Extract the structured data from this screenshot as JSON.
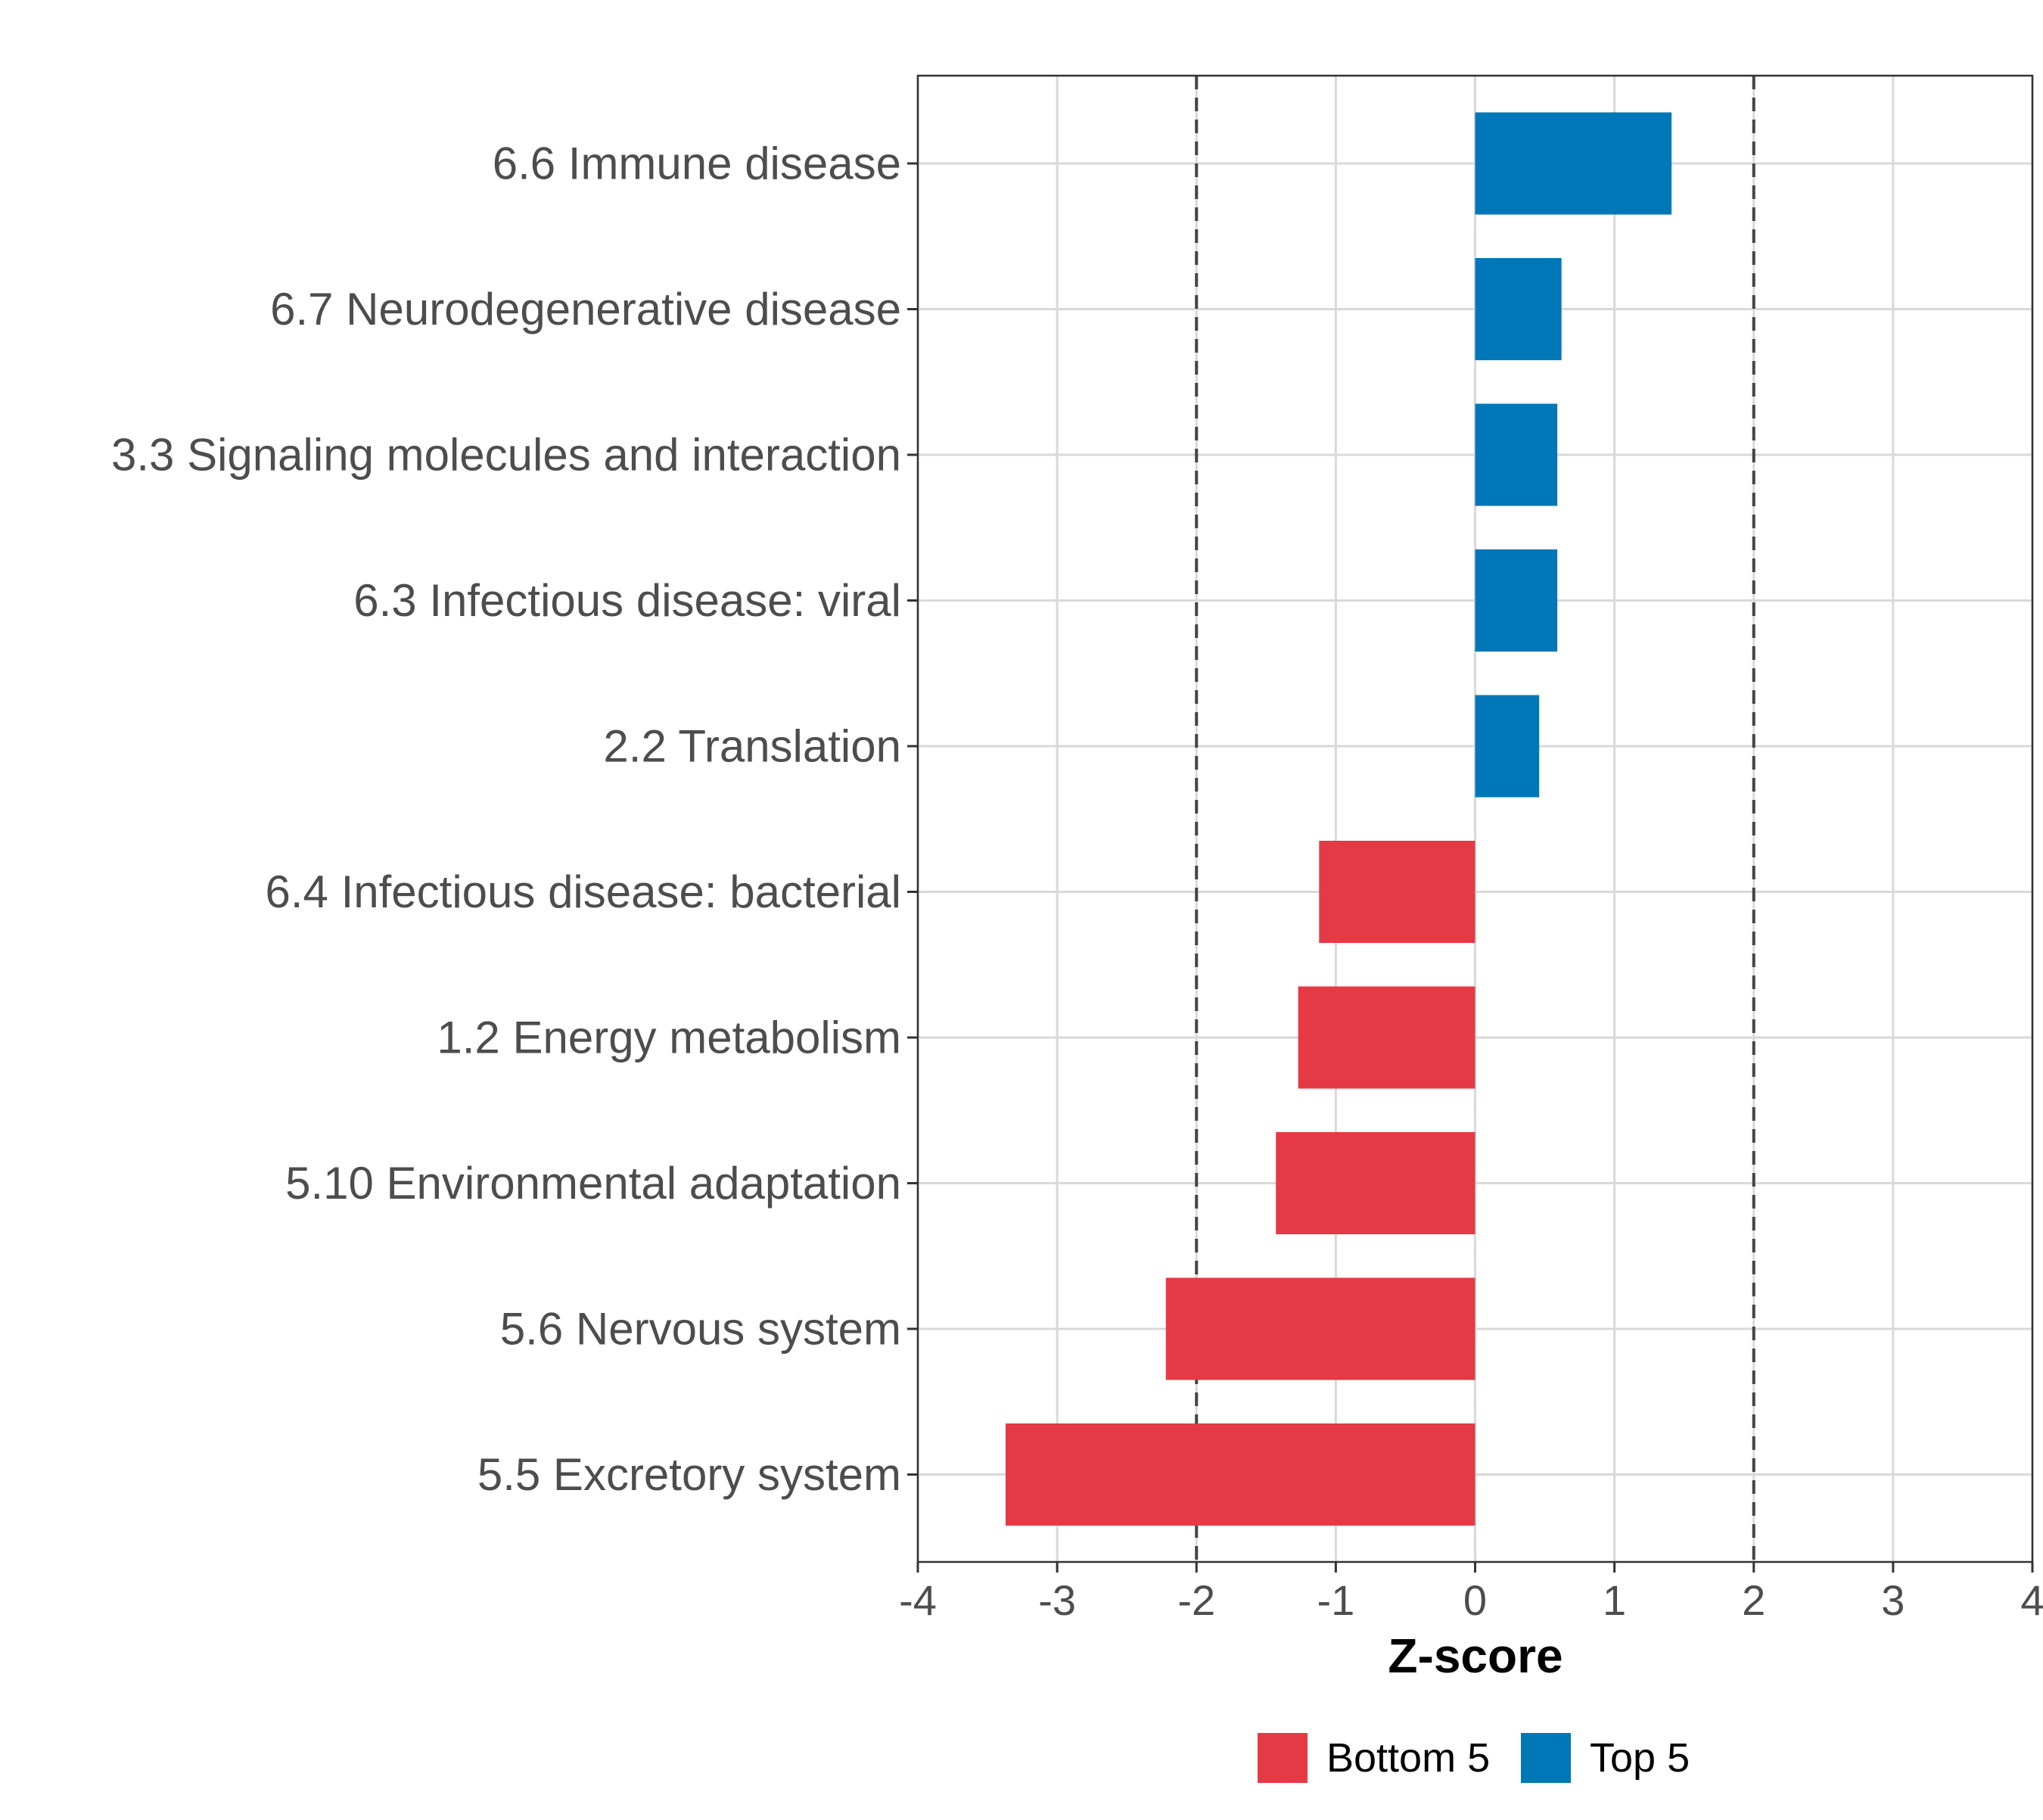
{
  "chart_data": {
    "type": "bar",
    "orientation": "horizontal",
    "title": "",
    "xlabel": "Z-score",
    "ylabel": "",
    "xlim": [
      -4,
      4
    ],
    "xticks": [
      "-4",
      "-3",
      "-2",
      "-1",
      "0",
      "1",
      "2",
      "3",
      "4"
    ],
    "reference_lines": [
      -2,
      2
    ],
    "categories": [
      "6.6 Immune disease",
      "6.7 Neurodegenerative disease",
      "3.3 Signaling molecules and interaction",
      "6.3 Infectious disease: viral",
      "2.2 Translation",
      "6.4 Infectious disease: bacterial",
      "1.2 Energy metabolism",
      "5.10 Environmental adaptation",
      "5.6 Nervous system",
      "5.5 Excretory system"
    ],
    "values": [
      1.41,
      0.62,
      0.59,
      0.59,
      0.46,
      -1.12,
      -1.27,
      -1.43,
      -2.22,
      -3.37
    ],
    "groups": [
      "Top 5",
      "Top 5",
      "Top 5",
      "Top 5",
      "Top 5",
      "Bottom 5",
      "Bottom 5",
      "Bottom 5",
      "Bottom 5",
      "Bottom 5"
    ],
    "legend": [
      {
        "label": "Bottom 5",
        "color": "#e63946"
      },
      {
        "label": "Top 5",
        "color": "#0077b6"
      }
    ],
    "legend_position": "bottom",
    "grid": true
  }
}
